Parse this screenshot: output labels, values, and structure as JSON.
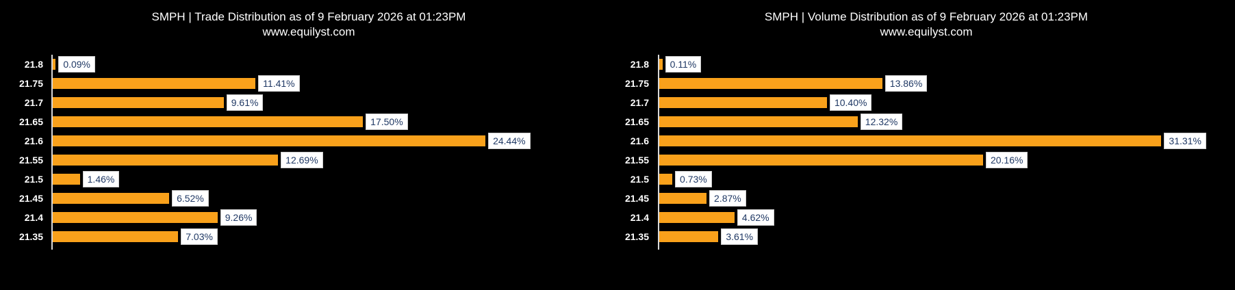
{
  "page": {
    "background": "#000000"
  },
  "chart_data": [
    {
      "type": "bar",
      "orientation": "horizontal",
      "title": "SMPH | Trade Distribution as of 9 February 2026 at 01:23PM",
      "subtitle": "www.equilyst.com",
      "categories": [
        "21.8",
        "21.75",
        "21.7",
        "21.65",
        "21.6",
        "21.55",
        "21.5",
        "21.45",
        "21.4",
        "21.35"
      ],
      "values": [
        0.09,
        11.41,
        9.61,
        17.5,
        24.44,
        12.69,
        1.46,
        6.52,
        9.26,
        7.03
      ],
      "value_labels": [
        "0.09%",
        "11.41%",
        "9.61%",
        "17.50%",
        "24.44%",
        "12.69%",
        "1.46%",
        "6.52%",
        "9.26%",
        "7.03%"
      ],
      "xlim": [
        0,
        32
      ],
      "grid": false,
      "legend": "none",
      "bar_color": "#F9A11B",
      "label_text_color": "#1F3864",
      "label_bg": "#FFFFFF",
      "title_color": "#FFFFFF",
      "tick_color": "#FFFFFF",
      "axis_line_color": "#D9D9D9",
      "background": "#000000"
    },
    {
      "type": "bar",
      "orientation": "horizontal",
      "title": "SMPH | Volume Distribution as of 9 February 2026 at 01:23PM",
      "subtitle": "www.equilyst.com",
      "categories": [
        "21.8",
        "21.75",
        "21.7",
        "21.65",
        "21.6",
        "21.55",
        "21.5",
        "21.45",
        "21.4",
        "21.35"
      ],
      "values": [
        0.11,
        13.86,
        10.4,
        12.32,
        31.31,
        20.16,
        0.73,
        2.87,
        4.62,
        3.61
      ],
      "value_labels": [
        "0.11%",
        "13.86%",
        "10.40%",
        "12.32%",
        "31.31%",
        "20.16%",
        "0.73%",
        "2.87%",
        "4.62%",
        "3.61%"
      ],
      "xlim": [
        0,
        36
      ],
      "grid": false,
      "legend": "none",
      "bar_color": "#F9A11B",
      "label_text_color": "#1F3864",
      "label_bg": "#FFFFFF",
      "title_color": "#FFFFFF",
      "tick_color": "#FFFFFF",
      "axis_line_color": "#D9D9D9",
      "background": "#000000"
    }
  ]
}
